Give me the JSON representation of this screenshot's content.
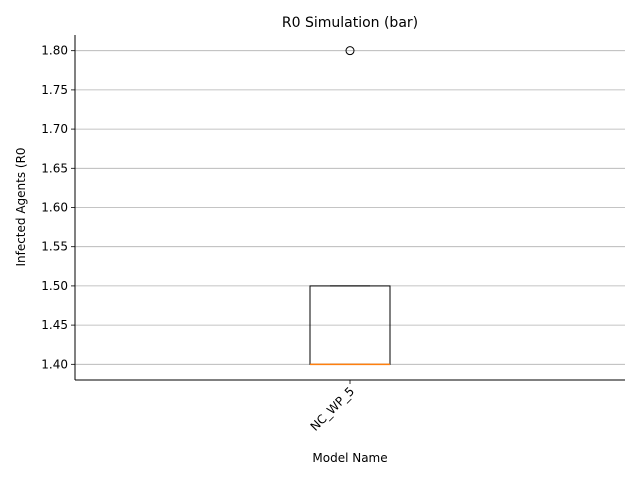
{
  "chart_data": {
    "type": "box",
    "title": "R0 Simulation (bar)",
    "xlabel": "Model Name",
    "ylabel": "Infected Agents (R0",
    "categories": [
      "NC_WP_5"
    ],
    "boxes": [
      {
        "category": "NC_WP_5",
        "whisker_low": 1.4,
        "q1": 1.4,
        "median": 1.4,
        "q3": 1.5,
        "whisker_high": 1.5,
        "outliers": [
          1.8
        ]
      }
    ],
    "ylim": [
      1.38,
      1.82
    ],
    "yticks": [
      "1.40",
      "1.45",
      "1.50",
      "1.55",
      "1.60",
      "1.65",
      "1.70",
      "1.75",
      "1.80"
    ],
    "grid": "y",
    "colors": {
      "box": "#000000",
      "median": "#ff7f0e",
      "grid": "#b0b0b0"
    }
  }
}
